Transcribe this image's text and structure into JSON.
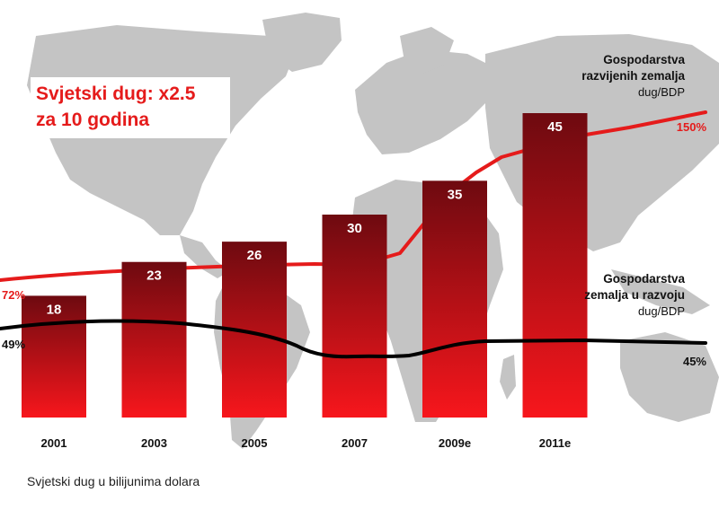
{
  "title": {
    "line1": "Svjetski dug: x2.5",
    "line2": "za 10 godina"
  },
  "legend": {
    "developed": {
      "line1": "Gospodarstva",
      "line2": "razvijenih zemalja",
      "sub": "dug/BDP",
      "color": "#e51b1b"
    },
    "developing": {
      "line1": "Gospodarstva",
      "line2": "zemalja u razvoju",
      "sub": "dug/BDP",
      "color": "#000000"
    }
  },
  "footer": "Svjetski dug u bilijunima dolara",
  "chart_data": {
    "type": "bar",
    "categories": [
      "2001",
      "2003",
      "2005",
      "2007",
      "2009e",
      "2011e"
    ],
    "values": [
      18,
      23,
      26,
      30,
      35,
      45
    ],
    "ylim": [
      0,
      50
    ],
    "bar_gradient": [
      "#6e0a10",
      "#f7161c"
    ],
    "lines": [
      {
        "key": "developed",
        "color": "#e51b1b",
        "start_label": "72%",
        "end_label": "150%"
      },
      {
        "key": "developing",
        "color": "#000000",
        "start_label": "49%",
        "end_label": "45%"
      }
    ]
  }
}
